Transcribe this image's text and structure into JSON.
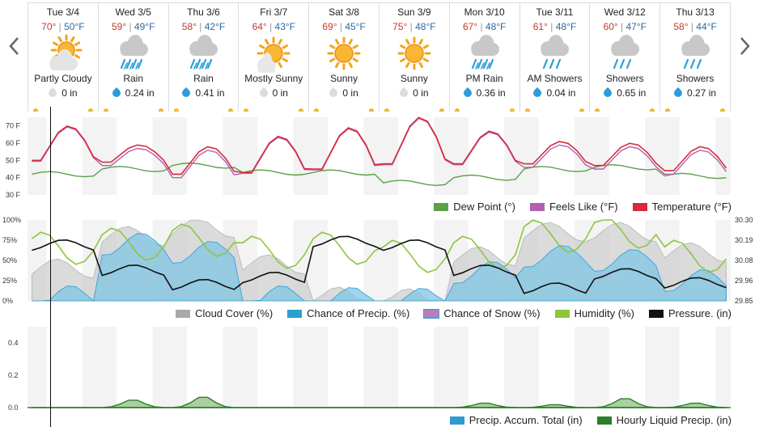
{
  "nav": {
    "prev": "chevron-left-icon",
    "next": "chevron-right-icon"
  },
  "days": [
    {
      "day": "Tue 3/4",
      "hi": "70°",
      "lo": "50°F",
      "icon": "partly-cloudy-icon",
      "cond": "Partly Cloudy",
      "precip": "0 in",
      "wet": false
    },
    {
      "day": "Wed 3/5",
      "hi": "59°",
      "lo": "49°F",
      "icon": "rain-icon",
      "cond": "Rain",
      "precip": "0.24 in",
      "wet": true
    },
    {
      "day": "Thu 3/6",
      "hi": "58°",
      "lo": "42°F",
      "icon": "rain-icon",
      "cond": "Rain",
      "precip": "0.41 in",
      "wet": true
    },
    {
      "day": "Fri 3/7",
      "hi": "64°",
      "lo": "43°F",
      "icon": "mostly-sunny-icon",
      "cond": "Mostly Sunny",
      "precip": "0 in",
      "wet": false
    },
    {
      "day": "Sat 3/8",
      "hi": "69°",
      "lo": "45°F",
      "icon": "sunny-icon",
      "cond": "Sunny",
      "precip": "0 in",
      "wet": false
    },
    {
      "day": "Sun 3/9",
      "hi": "75°",
      "lo": "48°F",
      "icon": "sunny-icon",
      "cond": "Sunny",
      "precip": "0 in",
      "wet": false
    },
    {
      "day": "Mon 3/10",
      "hi": "67°",
      "lo": "48°F",
      "icon": "rain-icon",
      "cond": "PM Rain",
      "precip": "0.36 in",
      "wet": true
    },
    {
      "day": "Tue 3/11",
      "hi": "61°",
      "lo": "48°F",
      "icon": "showers-icon",
      "cond": "AM Showers",
      "precip": "0.04 in",
      "wet": true
    },
    {
      "day": "Wed 3/12",
      "hi": "60°",
      "lo": "47°F",
      "icon": "showers-icon",
      "cond": "Showers",
      "precip": "0.65 in",
      "wet": true
    },
    {
      "day": "Thu 3/13",
      "hi": "58°",
      "lo": "44°F",
      "icon": "showers-icon",
      "cond": "Showers",
      "precip": "0.27 in",
      "wet": true
    }
  ],
  "colors": {
    "temperature": "#d62b3a",
    "feels_like": "#b35fb0",
    "dew_point": "#5ca04a",
    "cloud_cover": "#a9a9a9",
    "chance_precip": "#2aa0cf",
    "chance_snow": "#b87fbf",
    "humidity": "#8cc63f",
    "pressure": "#111111",
    "accum": "#2c9ccf",
    "hourly": "#2d7d2a"
  },
  "chart_data": [
    {
      "type": "line",
      "x": [
        "Tue 3/4",
        "Wed 3/5",
        "Thu 3/6",
        "Fri 3/7",
        "Sat 3/8",
        "Sun 3/9",
        "Mon 3/10",
        "Tue 3/11",
        "Wed 3/12",
        "Thu 3/13"
      ],
      "ylim": [
        30,
        75
      ],
      "y_ticks": [
        "70 F",
        "60 F",
        "50 F",
        "40 F",
        "30 F"
      ],
      "series": [
        {
          "name": "Dew Point (°)",
          "values": [
            42,
            45,
            47,
            43,
            43,
            37,
            40,
            45,
            46,
            41
          ]
        },
        {
          "name": "Feels Like (°F)",
          "values": [
            50,
            52,
            50,
            47,
            45,
            48,
            50,
            49,
            48,
            48
          ]
        },
        {
          "name": "Temperature (°F)",
          "values": [
            51,
            55,
            53,
            55,
            57,
            60,
            57,
            53,
            53,
            51
          ]
        }
      ],
      "daily_high": [
        70,
        59,
        58,
        64,
        69,
        75,
        67,
        61,
        60,
        58
      ],
      "daily_low": [
        50,
        49,
        42,
        43,
        45,
        48,
        48,
        48,
        47,
        44
      ],
      "legend": [
        "Dew Point (°)",
        "Feels Like (°F)",
        "Temperature (°F)"
      ]
    },
    {
      "type": "area",
      "x": [
        "Tue 3/4",
        "Wed 3/5",
        "Thu 3/6",
        "Fri 3/7",
        "Sat 3/8",
        "Sun 3/9",
        "Mon 3/10",
        "Tue 3/11",
        "Wed 3/12",
        "Thu 3/13"
      ],
      "y_ticks_left": [
        "100%",
        "75%",
        "50%",
        "25%",
        "0%"
      ],
      "y_ticks_right": [
        "30.30",
        "30.19",
        "30.08",
        "29.96",
        "29.85"
      ],
      "series": [
        {
          "name": "Cloud Cover (%)",
          "values": [
            40,
            80,
            90,
            45,
            5,
            3,
            55,
            85,
            85,
            60
          ]
        },
        {
          "name": "Chance of Precip. (%)",
          "values": [
            5,
            70,
            60,
            5,
            3,
            2,
            35,
            55,
            50,
            25
          ]
        },
        {
          "name": "Chance of Snow (%)",
          "values": [
            0,
            0,
            0,
            0,
            0,
            0,
            0,
            0,
            0,
            0
          ]
        },
        {
          "name": "Humidity (%)",
          "values": [
            65,
            70,
            75,
            60,
            65,
            55,
            60,
            80,
            85,
            55
          ]
        },
        {
          "name": "Pressure. (in)",
          "values": [
            30.16,
            30.02,
            29.94,
            29.98,
            30.18,
            30.16,
            30.02,
            29.92,
            30.0,
            29.95
          ]
        }
      ],
      "legend": [
        "Cloud Cover (%)",
        "Chance of Precip. (%)",
        "Chance of Snow (%)",
        "Humidity (%)",
        "Pressure. (in)"
      ]
    },
    {
      "type": "area",
      "x": [
        "Tue 3/4",
        "Wed 3/5",
        "Thu 3/6",
        "Fri 3/7",
        "Sat 3/8",
        "Sun 3/9",
        "Mon 3/10",
        "Tue 3/11",
        "Wed 3/12",
        "Thu 3/13"
      ],
      "ylim": [
        0,
        0.5
      ],
      "y_ticks": [
        "0.4",
        "0.2",
        "0.0"
      ],
      "series": [
        {
          "name": "Precip. Accum. Total (in)",
          "values": [
            0,
            0,
            0,
            0,
            0,
            0,
            0,
            0,
            0,
            0
          ]
        },
        {
          "name": "Hourly Liquid Precip. (in)",
          "values": [
            0,
            0.05,
            0.07,
            0,
            0,
            0,
            0.03,
            0.02,
            0.06,
            0.03
          ]
        }
      ],
      "legend": [
        "Precip. Accum. Total (in)",
        "Hourly Liquid Precip. (in)"
      ]
    }
  ]
}
